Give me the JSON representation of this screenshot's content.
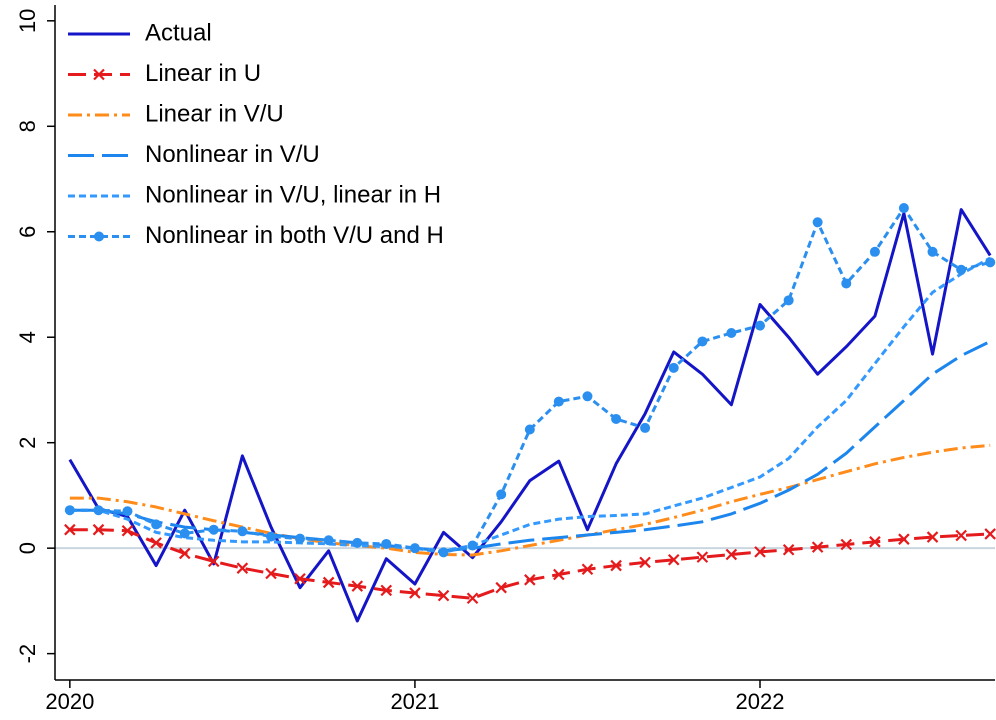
{
  "chart_data": {
    "type": "line",
    "x": [
      2020,
      2020.083,
      2020.167,
      2020.25,
      2020.333,
      2020.417,
      2020.5,
      2020.583,
      2020.667,
      2020.75,
      2020.833,
      2020.917,
      2021,
      2021.083,
      2021.167,
      2021.25,
      2021.333,
      2021.417,
      2021.5,
      2021.583,
      2021.667,
      2021.75,
      2021.833,
      2021.917,
      2022,
      2022.083,
      2022.167,
      2022.25,
      2022.333,
      2022.417,
      2022.5,
      2022.583,
      2022.667
    ],
    "series": [
      {
        "name": "Actual",
        "color": "#1515c8",
        "dash": "solid",
        "marker": "none",
        "values": [
          1.68,
          0.75,
          0.6,
          -0.33,
          0.72,
          -0.3,
          1.75,
          0.4,
          -0.75,
          -0.05,
          -1.38,
          -0.2,
          -0.68,
          0.3,
          -0.18,
          0.5,
          1.28,
          1.65,
          0.35,
          1.6,
          2.55,
          3.72,
          3.3,
          2.72,
          4.62,
          4.0,
          3.3,
          3.82,
          4.4,
          6.35,
          3.68,
          6.42,
          5.55
        ]
      },
      {
        "name": "Linear in U",
        "color": "#e41a1c",
        "dash": "dash",
        "marker": "x",
        "values": [
          0.35,
          0.35,
          0.33,
          0.1,
          -0.1,
          -0.25,
          -0.38,
          -0.48,
          -0.58,
          -0.65,
          -0.72,
          -0.8,
          -0.85,
          -0.9,
          -0.95,
          -0.75,
          -0.6,
          -0.5,
          -0.4,
          -0.33,
          -0.27,
          -0.22,
          -0.17,
          -0.12,
          -0.07,
          -0.03,
          0.02,
          0.07,
          0.12,
          0.17,
          0.21,
          0.24,
          0.27
        ]
      },
      {
        "name": "Linear in V/U",
        "color": "#ff8c1a",
        "dash": "dashdot",
        "marker": "none",
        "values": [
          0.95,
          0.95,
          0.88,
          0.78,
          0.65,
          0.52,
          0.4,
          0.28,
          0.18,
          0.1,
          0.05,
          0.0,
          -0.08,
          -0.12,
          -0.13,
          -0.05,
          0.05,
          0.15,
          0.25,
          0.35,
          0.45,
          0.58,
          0.72,
          0.88,
          1.02,
          1.15,
          1.3,
          1.45,
          1.6,
          1.72,
          1.82,
          1.9,
          1.95
        ]
      },
      {
        "name": "Nonlinear in V/U",
        "color": "#1c86ee",
        "dash": "longdash",
        "marker": "none",
        "values": [
          0.72,
          0.72,
          0.65,
          0.5,
          0.4,
          0.35,
          0.3,
          0.25,
          0.2,
          0.15,
          0.1,
          0.05,
          0.0,
          -0.05,
          0.0,
          0.08,
          0.15,
          0.2,
          0.25,
          0.3,
          0.35,
          0.42,
          0.5,
          0.65,
          0.85,
          1.1,
          1.4,
          1.8,
          2.3,
          2.8,
          3.3,
          3.65,
          3.92
        ]
      },
      {
        "name": "Nonlinear in V/U, linear in H",
        "color": "#3399ff",
        "dash": "shortdash",
        "marker": "none",
        "values": [
          0.72,
          0.72,
          0.55,
          0.3,
          0.2,
          0.15,
          0.12,
          0.12,
          0.1,
          0.08,
          0.05,
          0.03,
          0.0,
          -0.05,
          0.05,
          0.25,
          0.45,
          0.55,
          0.6,
          0.62,
          0.65,
          0.8,
          0.95,
          1.15,
          1.35,
          1.7,
          2.3,
          2.8,
          3.5,
          4.2,
          4.85,
          5.2,
          5.5
        ]
      },
      {
        "name": "Nonlinear in both V/U and H",
        "color": "#2b8fef",
        "dash": "shortdash",
        "marker": "dot",
        "values": [
          0.72,
          0.72,
          0.7,
          0.45,
          0.28,
          0.35,
          0.32,
          0.22,
          0.18,
          0.15,
          0.1,
          0.08,
          0.0,
          -0.08,
          0.05,
          1.02,
          2.25,
          2.78,
          2.88,
          2.45,
          2.28,
          3.42,
          3.92,
          4.08,
          4.22,
          4.7,
          6.18,
          5.02,
          5.62,
          6.45,
          5.62,
          5.28,
          5.42
        ]
      }
    ],
    "xlim": [
      2019.957,
      2022.681
    ],
    "xticks": [
      2020,
      2021,
      2022
    ],
    "ylim": [
      -2.5,
      10.3
    ],
    "yticks": [
      -2,
      0,
      2,
      4,
      6,
      8,
      10
    ],
    "reference_line": 0,
    "legend": "top-left"
  }
}
